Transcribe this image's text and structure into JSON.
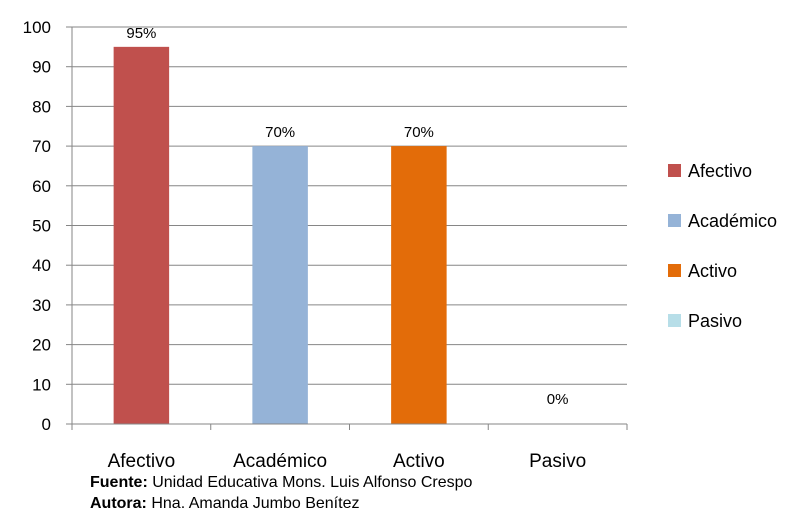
{
  "chart_data": {
    "type": "bar",
    "categories": [
      "Afectivo",
      "Académico",
      "Activo",
      "Pasivo"
    ],
    "values": [
      95,
      70,
      70,
      0
    ],
    "data_labels": [
      "95%",
      "70%",
      "70%",
      "0%"
    ],
    "colors": [
      "#C0504D",
      "#95B3D7",
      "#E36C09",
      "#B7DEE8"
    ],
    "legend": [
      "Afectivo",
      "Académico",
      "Activo",
      "Pasivo"
    ],
    "legend_position": "right",
    "ylim": [
      0,
      100
    ],
    "yticks": [
      0,
      10,
      20,
      30,
      40,
      50,
      60,
      70,
      80,
      90,
      100
    ],
    "grid": true,
    "title": "",
    "xlabel": "",
    "ylabel": ""
  },
  "footer": {
    "source_label": "Fuente:",
    "source_text": " Unidad Educativa Mons. Luis Alfonso Crespo",
    "author_label": "Autora:",
    "author_text": " Hna. Amanda Jumbo Benítez"
  }
}
